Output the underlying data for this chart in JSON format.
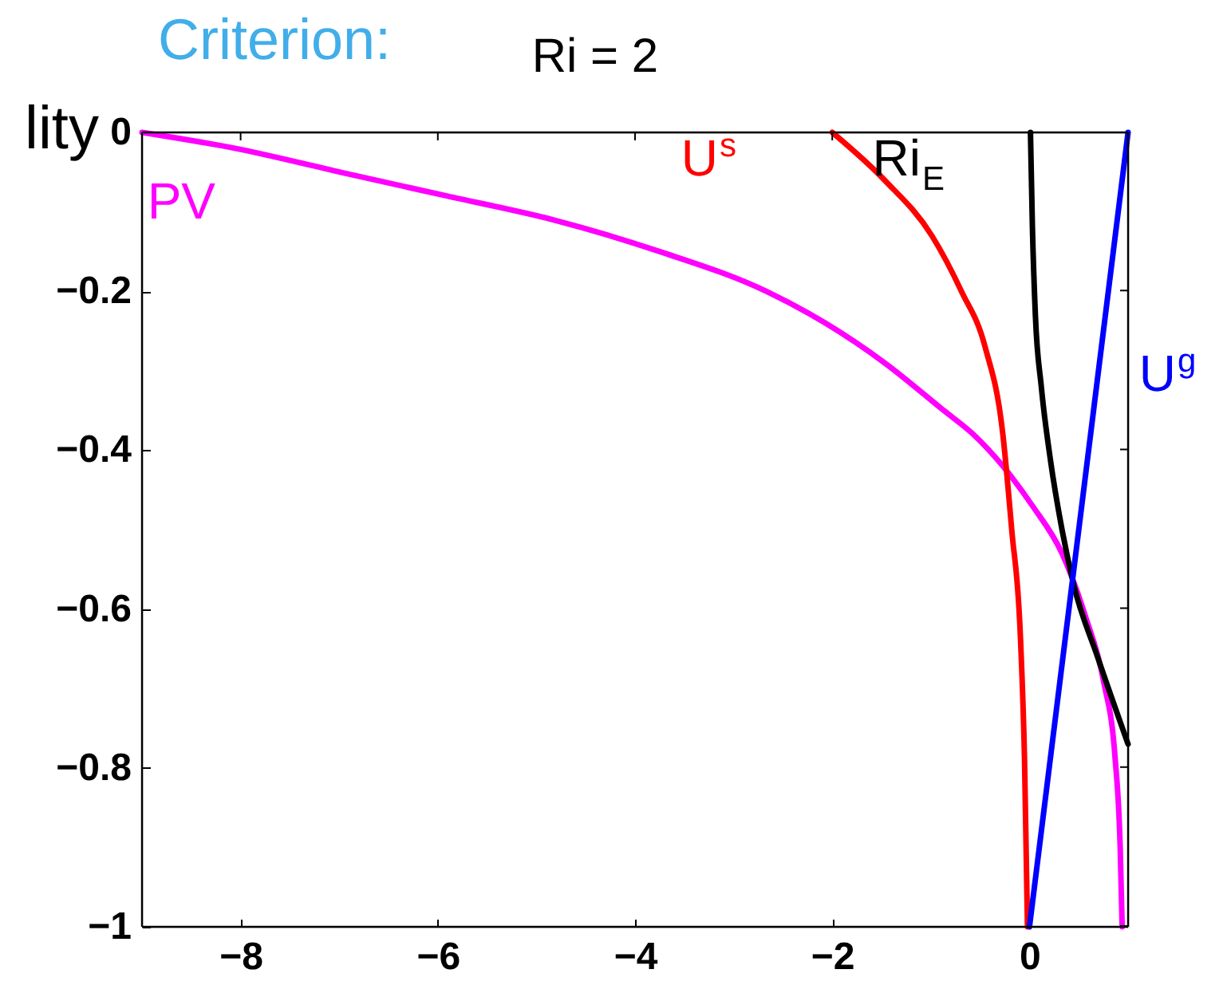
{
  "chart_data": {
    "type": "line",
    "title": "Ri = 2",
    "annotations": [
      "Criterion:",
      "lity"
    ],
    "xlim": [
      -9,
      1
    ],
    "ylim": [
      -1,
      0
    ],
    "xticks": [
      -8,
      -6,
      -4,
      -2,
      0
    ],
    "yticks": [
      -1,
      -0.8,
      -0.6,
      -0.4,
      -0.2,
      0
    ],
    "grid": false,
    "series": [
      {
        "name": "PV",
        "color": "#ff00ff",
        "x": [
          -9,
          -8.06,
          -6.99,
          -5.91,
          -4.83,
          -3.75,
          -2.67,
          -2.07,
          -1.47,
          -0.87,
          -0.57,
          -0.27,
          0.03,
          0.33,
          0.57,
          0.75,
          0.87,
          0.92,
          0.94
        ],
        "values": [
          0,
          -0.02,
          -0.05,
          -0.08,
          -0.11,
          -0.15,
          -0.2,
          -0.24,
          -0.29,
          -0.35,
          -0.38,
          -0.42,
          -0.47,
          -0.53,
          -0.61,
          -0.69,
          -0.79,
          -0.9,
          -1.0
        ]
      },
      {
        "name": "U$^{s}$",
        "color": "#ff0000",
        "x": [
          -2.0,
          -1.47,
          -0.99,
          -0.69,
          -0.45,
          -0.27,
          -0.18,
          -0.09,
          -0.05,
          -0.02
        ],
        "values": [
          0,
          -0.06,
          -0.13,
          -0.2,
          -0.27,
          -0.38,
          -0.5,
          -0.64,
          -0.79,
          -1.0
        ]
      },
      {
        "name": "Ri$_{E}$",
        "color": "#000000",
        "x": [
          0.01,
          0.03,
          0.06,
          0.12,
          0.21,
          0.33,
          0.45,
          0.69,
          1.0
        ],
        "values": [
          0,
          -0.12,
          -0.23,
          -0.32,
          -0.41,
          -0.5,
          -0.57,
          -0.66,
          -0.77
        ]
      },
      {
        "name": "U$^{g}$",
        "color": "#0000ff",
        "x": [
          0,
          1
        ],
        "values": [
          -1,
          0
        ]
      }
    ]
  }
}
